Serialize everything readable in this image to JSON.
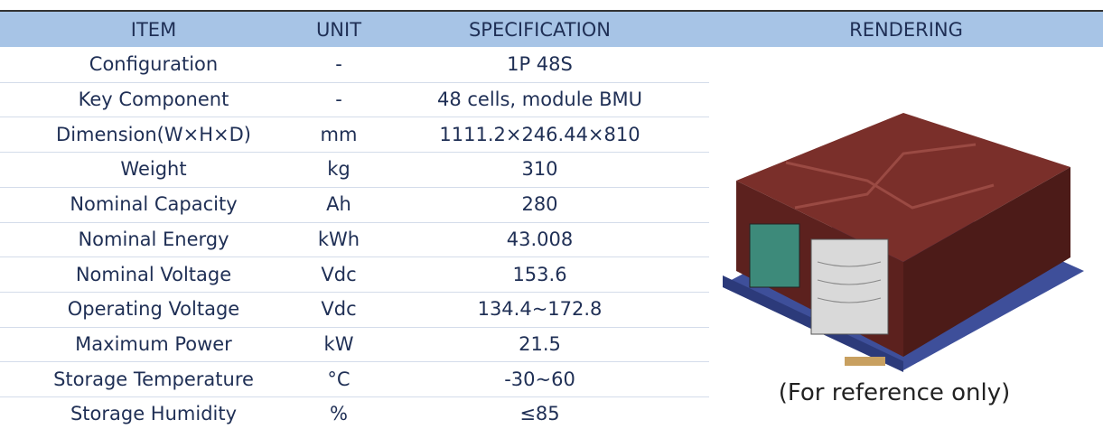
{
  "table": {
    "header": [
      "ITEM",
      "UNIT",
      "SPECIFICATION",
      "RENDERING"
    ],
    "rows": [
      [
        "Configuration",
        "-",
        "1P 48S"
      ],
      [
        "Key Component",
        "-",
        "48 cells, module BMU"
      ],
      [
        "Dimension(W×H×D)",
        "mm",
        "1111.2×246.44×810"
      ],
      [
        "Weight",
        "kg",
        "310"
      ],
      [
        "Nominal Capacity",
        "Ah",
        "280"
      ],
      [
        "Nominal Energy",
        "kWh",
        "43.008"
      ],
      [
        "Nominal Voltage",
        "Vdc",
        "153.6"
      ],
      [
        "Operating Voltage",
        "Vdc",
        "134.4~172.8"
      ],
      [
        "Maximum Power",
        "kW",
        "21.5"
      ],
      [
        "Storage Temperature",
        "°C",
        "-30~60"
      ],
      [
        "Storage Humidity",
        "%",
        "≤85"
      ]
    ],
    "caption": "(For reference only)"
  }
}
